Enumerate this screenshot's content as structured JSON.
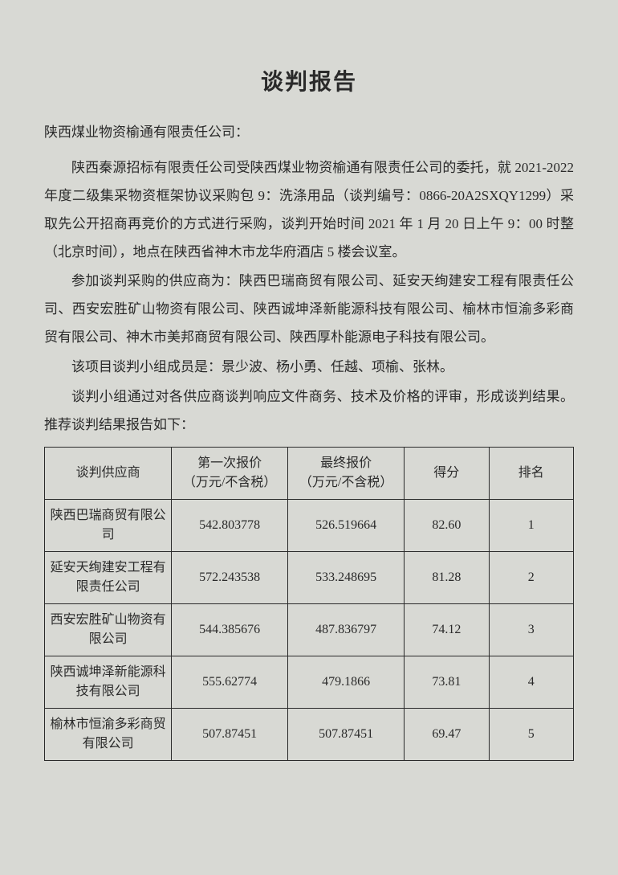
{
  "title": "谈判报告",
  "addressee": "陕西煤业物资榆通有限责任公司：",
  "para1": "陕西秦源招标有限责任公司受陕西煤业物资榆通有限责任公司的委托，就 2021-2022 年度二级集采物资框架协议采购包 9：洗涤用品（谈判编号：0866-20A2SXQY1299）采取先公开招商再竞价的方式进行采购，谈判开始时间 2021 年 1 月 20 日上午 9：00 时整（北京时间），地点在陕西省神木市龙华府酒店 5 楼会议室。",
  "para2": "参加谈判采购的供应商为：陕西巴瑞商贸有限公司、延安天绚建安工程有限责任公司、西安宏胜矿山物资有限公司、陕西诚坤泽新能源科技有限公司、榆林市恒渝多彩商贸有限公司、神木市美邦商贸有限公司、陕西厚朴能源电子科技有限公司。",
  "para3": "该项目谈判小组成员是：景少波、杨小勇、任越、项榆、张林。",
  "para4": "谈判小组通过对各供应商谈判响应文件商务、技术及价格的评审，形成谈判结果。推荐谈判结果报告如下：",
  "table": {
    "headers": {
      "supplier": "谈判供应商",
      "first_quote_l1": "第一次报价",
      "first_quote_l2": "（万元/不含税）",
      "final_quote_l1": "最终报价",
      "final_quote_l2": "（万元/不含税）",
      "score": "得分",
      "rank": "排名"
    },
    "rows": [
      {
        "supplier": "陕西巴瑞商贸有限公司",
        "first_quote": "542.803778",
        "final_quote": "526.519664",
        "score": "82.60",
        "rank": "1"
      },
      {
        "supplier": "延安天绚建安工程有限责任公司",
        "first_quote": "572.243538",
        "final_quote": "533.248695",
        "score": "81.28",
        "rank": "2"
      },
      {
        "supplier": "西安宏胜矿山物资有限公司",
        "first_quote": "544.385676",
        "final_quote": "487.836797",
        "score": "74.12",
        "rank": "3"
      },
      {
        "supplier": "陕西诚坤泽新能源科技有限公司",
        "first_quote": "555.62774",
        "final_quote": "479.1866",
        "score": "73.81",
        "rank": "4"
      },
      {
        "supplier": "榆林市恒渝多彩商贸有限公司",
        "first_quote": "507.87451",
        "final_quote": "507.87451",
        "score": "69.47",
        "rank": "5"
      }
    ]
  }
}
